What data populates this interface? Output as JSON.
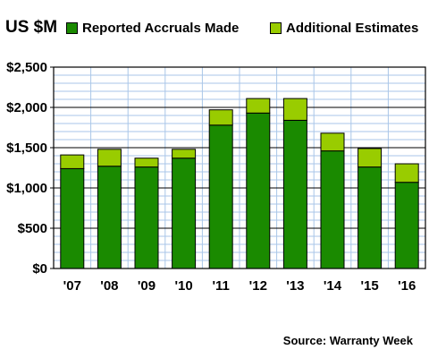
{
  "unit_label": "US $M",
  "source": "Source: Warranty Week",
  "chart_data": {
    "type": "bar",
    "stacked": true,
    "categories": [
      "'07",
      "'08",
      "'09",
      "'10",
      "'11",
      "'12",
      "'13",
      "'14",
      "'15",
      "'16"
    ],
    "series": [
      {
        "name": "Reported Accruals Made",
        "color": "#1a8a00",
        "values": [
          1240,
          1270,
          1260,
          1370,
          1780,
          1930,
          1840,
          1460,
          1260,
          1070
        ]
      },
      {
        "name": "Additional Estimates",
        "color": "#99cc00",
        "values": [
          170,
          210,
          110,
          110,
          190,
          180,
          270,
          220,
          230,
          230
        ]
      }
    ],
    "y_ticks": [
      "$0",
      "$500",
      "$1,000",
      "$1,500",
      "$2,000",
      "$2,500"
    ],
    "ylim": [
      0,
      2500
    ],
    "y_minor_step": 100,
    "grid": true,
    "legend": "top"
  }
}
